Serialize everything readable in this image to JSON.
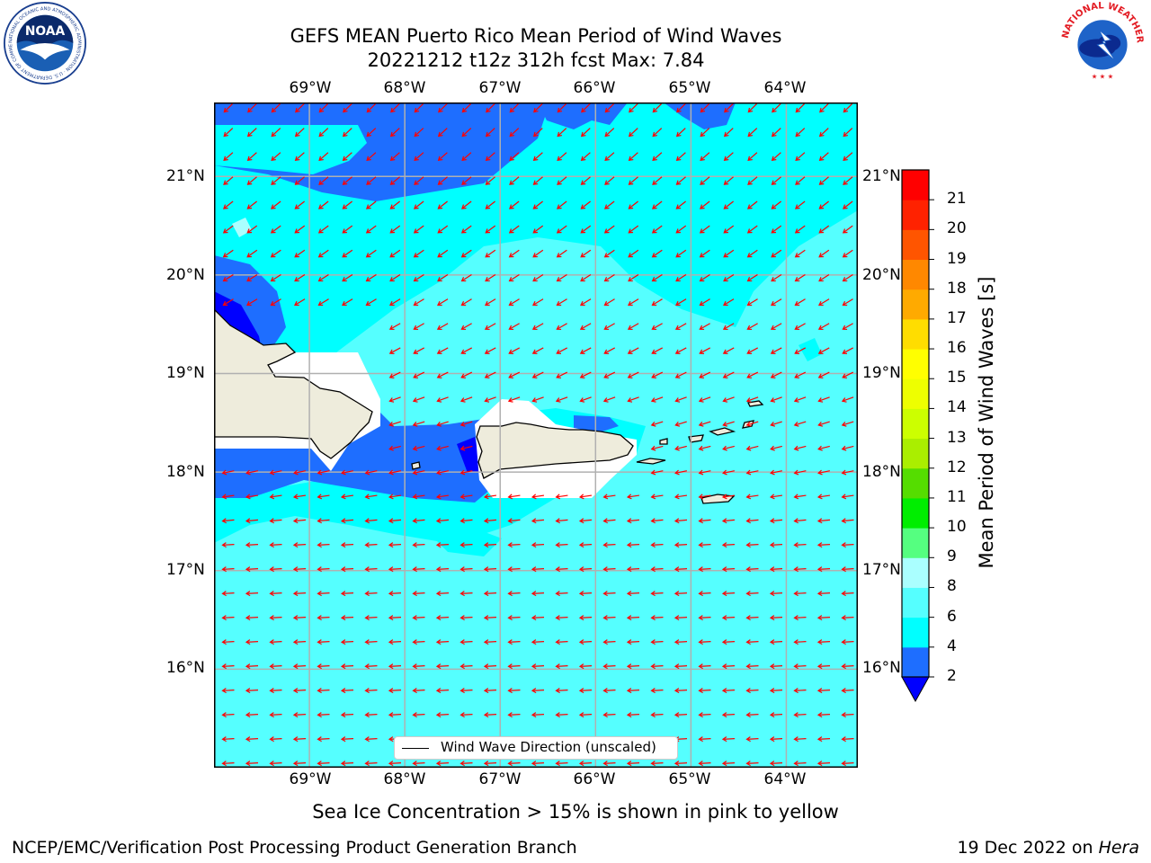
{
  "title": {
    "line1": "GEFS MEAN Puerto Rico Mean Period of Wind Waves",
    "line2": "20221212 t12z 312h fcst   Max: 7.84"
  },
  "logos": {
    "left": {
      "name": "noaa-logo",
      "text": "NOAA",
      "ring": "NATIONAL OCEANIC AND ATMOSPHERIC ADMINISTRATION · U.S. DEPARTMENT OF COMMERCE"
    },
    "right": {
      "name": "nws-logo",
      "ring": "NATIONAL WEATHER SERVICE"
    }
  },
  "map": {
    "lon_labels": [
      "69°W",
      "68°W",
      "67°W",
      "66°W",
      "65°W",
      "64°W"
    ],
    "lon_values": [
      -69,
      -68,
      -67,
      -66,
      -65,
      -64
    ],
    "lat_labels": [
      "21°N",
      "20°N",
      "19°N",
      "18°N",
      "17°N",
      "16°N"
    ],
    "lat_values": [
      21,
      20,
      19,
      18,
      17,
      16
    ],
    "lon_range": [
      -70.0,
      -63.25
    ],
    "lat_range": [
      15.0,
      21.75
    ],
    "grid": true,
    "legend_label": "Wind Wave Direction (unscaled)",
    "legend_position": "lower-center",
    "arrow_color": "#ff0000",
    "land_color": "#eeecdc",
    "grid_color": "#b0b0b0"
  },
  "colorbar": {
    "label": "Mean Period of Wind Waves [s]",
    "ticks": [
      "2",
      "4",
      "6",
      "8",
      "9",
      "10",
      "11",
      "12",
      "13",
      "14",
      "15",
      "16",
      "17",
      "18",
      "19",
      "20",
      "21"
    ],
    "colors": [
      "#1e6eff",
      "#00ffff",
      "#55ffff",
      "#aaffff",
      "#55ff80",
      "#00ee00",
      "#55dd00",
      "#aaee00",
      "#ccff00",
      "#eeff00",
      "#ffff00",
      "#ffdd00",
      "#ffaa00",
      "#ff8800",
      "#ff5500",
      "#ff2200",
      "#ff0000"
    ],
    "under_color": "#0000ff"
  },
  "footer": {
    "subtitle": "Sea Ice Concentration > 15% is shown in pink to yellow",
    "left": "NCEP/EMC/Verification Post Processing Product Generation Branch",
    "right_prefix": "19 Dec 2022 on ",
    "right_host": "Hera"
  }
}
